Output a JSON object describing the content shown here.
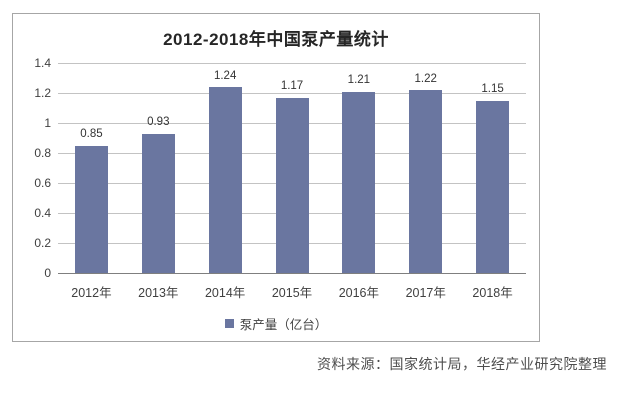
{
  "chart_data": {
    "type": "bar",
    "title": "2012-2018年中国泵产量统计",
    "categories": [
      "2012年",
      "2013年",
      "2014年",
      "2015年",
      "2016年",
      "2017年",
      "2018年"
    ],
    "values": [
      0.85,
      0.93,
      1.24,
      1.17,
      1.21,
      1.22,
      1.15
    ],
    "value_labels": [
      "0.85",
      "0.93",
      "1.24",
      "1.17",
      "1.21",
      "1.22",
      "1.15"
    ],
    "xlabel": "",
    "ylabel": "",
    "ylim": [
      0,
      1.4
    ],
    "ytick_step": 0.2,
    "yticks": [
      "1.4",
      "1.2",
      "1",
      "0.8",
      "0.6",
      "0.4",
      "0.2",
      "0"
    ],
    "grid": true,
    "bar_color": "#6a76a0",
    "gridline_color": "#c3c3c3",
    "axis_line_color": "#7f7f7f",
    "legend_position": "bottom",
    "legend": [
      {
        "label": "泵产量（亿台）",
        "color": "#6a76a0"
      }
    ]
  },
  "footer": {
    "source": "资料来源：国家统计局，华经产业研究院整理"
  }
}
